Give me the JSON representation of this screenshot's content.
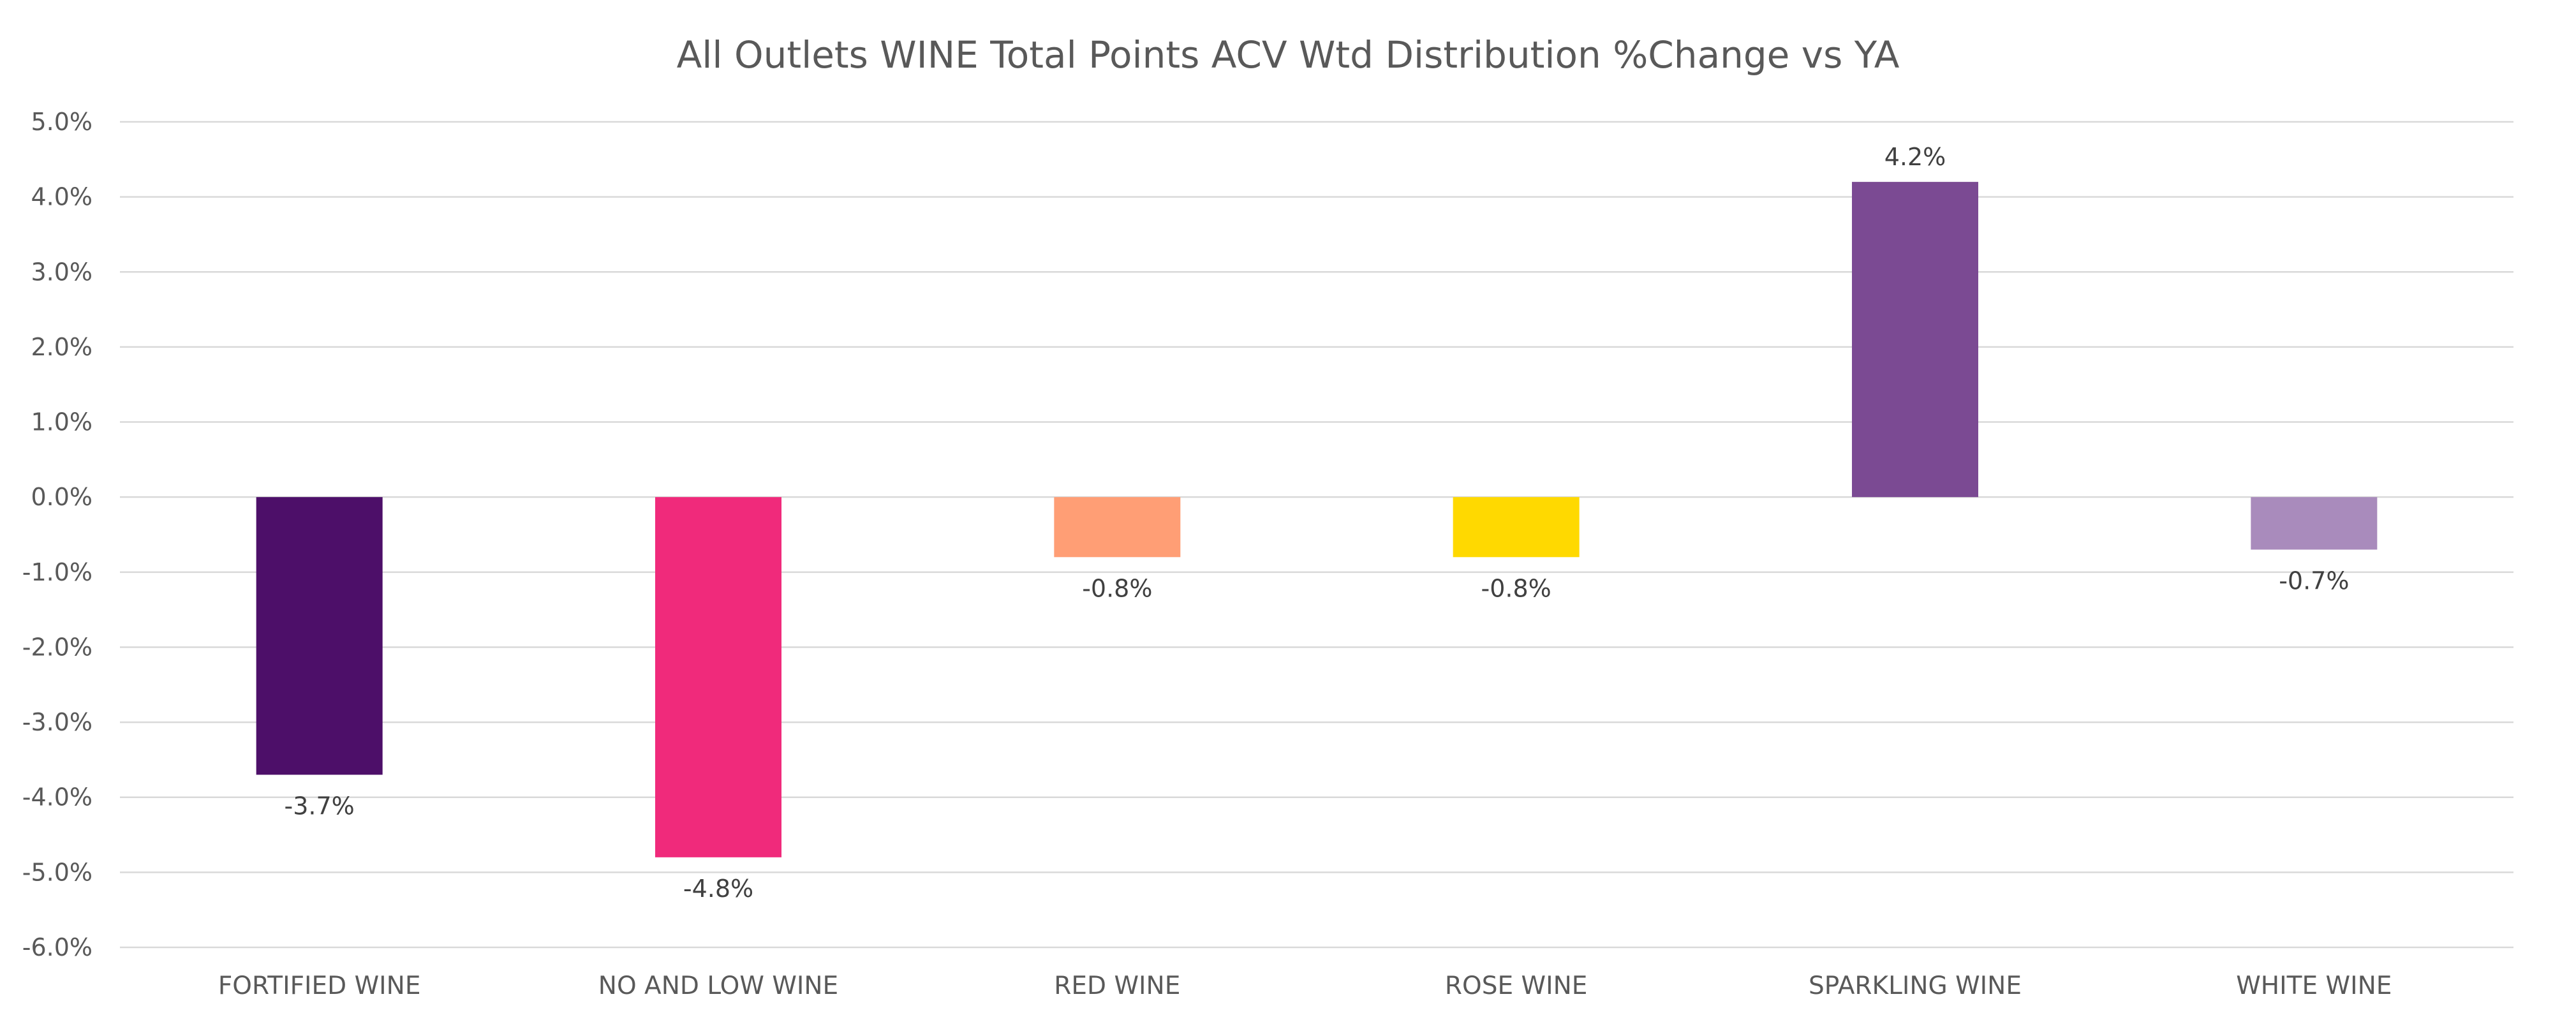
{
  "chart_data": {
    "type": "bar",
    "title": "All Outlets WINE Total Points ACV Wtd Distribution %Change vs YA",
    "xlabel": "",
    "ylabel": "",
    "categories": [
      "FORTIFIED WINE",
      "NO AND LOW WINE",
      "RED WINE",
      "ROSE WINE",
      "SPARKLING WINE",
      "WHITE WINE"
    ],
    "values": [
      -3.7,
      -4.8,
      -0.8,
      -0.8,
      4.2,
      -0.7
    ],
    "data_labels": [
      "-3.7%",
      "-4.8%",
      "-0.8%",
      "-0.8%",
      "4.2%",
      "-0.7%"
    ],
    "colors": [
      "#4d0f69",
      "#f02a7b",
      "#ff9e75",
      "#ffd900",
      "#7b4a93",
      "#a98bbc"
    ],
    "ylim": [
      -6,
      5
    ],
    "yticks": [
      5,
      4,
      3,
      2,
      1,
      0,
      -1,
      -2,
      -3,
      -4,
      -5,
      -6
    ],
    "ytick_labels": [
      "5.0%",
      "4.0%",
      "3.0%",
      "2.0%",
      "1.0%",
      "0.0%",
      "-1.0%",
      "-2.0%",
      "-3.0%",
      "-4.0%",
      "-5.0%",
      "-6.0%"
    ],
    "grid": true,
    "legend": "none",
    "gridline_color": "#d9d9d9",
    "text_color": "#595959"
  }
}
